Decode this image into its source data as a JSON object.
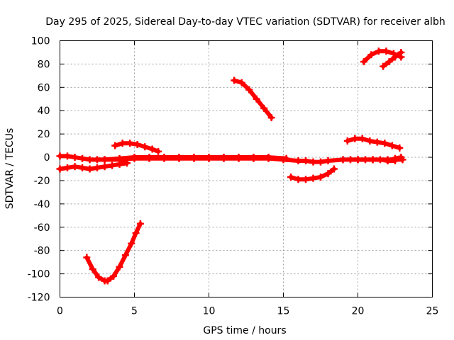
{
  "chart_data": {
    "type": "line",
    "title": "Day 295 of 2025, Sidereal Day-to-day VTEC variation (SDTVAR) for receiver albh",
    "xlabel": "GPS time / hours",
    "ylabel": "SDTVAR / TECUs",
    "xlim": [
      0,
      25
    ],
    "ylim": [
      -120,
      100
    ],
    "xticks": [
      0,
      5,
      10,
      15,
      20,
      25
    ],
    "yticks": [
      -120,
      -100,
      -80,
      -60,
      -40,
      -20,
      0,
      20,
      40,
      60,
      80,
      100
    ],
    "grid": true,
    "marker": "plus",
    "color": "#ff0000",
    "series": [
      {
        "name": "arc-main-near-zero",
        "x": [
          0,
          0.5,
          1,
          1.5,
          2,
          3,
          4,
          5,
          6,
          7,
          8,
          9,
          10,
          11,
          12,
          13,
          14,
          15,
          16,
          16.5,
          17,
          17.5,
          18,
          19,
          20,
          21,
          22,
          23
        ],
        "y": [
          1,
          1,
          0,
          -1,
          -2,
          -2,
          -2,
          -1,
          -1,
          -1,
          -1,
          -1,
          -1,
          -1,
          -1,
          -1,
          -1,
          -2,
          -3,
          -3,
          -4,
          -4,
          -3,
          -2,
          -2,
          -2,
          -2,
          -2
        ]
      },
      {
        "name": "arc-near-zero-b",
        "x": [
          2.5,
          3,
          4,
          5,
          6,
          7,
          8,
          9,
          10,
          11,
          12,
          13,
          14,
          15.2
        ],
        "y": [
          -2,
          -2,
          -1,
          0,
          0,
          0,
          0,
          0,
          0,
          0,
          0,
          0,
          0,
          -1
        ]
      },
      {
        "name": "arc-start-negative",
        "x": [
          0,
          0.5,
          1,
          1.5,
          2,
          2.5,
          3,
          3.5,
          4,
          4.5,
          4.3
        ],
        "y": [
          -10,
          -9,
          -8,
          -9,
          -10,
          -9,
          -8,
          -7,
          -6,
          -5,
          -4
        ]
      },
      {
        "name": "arc-deep-dip",
        "x": [
          1.8,
          2.2,
          2.6,
          3.0,
          3.2,
          3.6,
          4.0,
          4.4,
          4.8,
          5.1,
          5.4
        ],
        "y": [
          -86,
          -96,
          -103,
          -106,
          -106,
          -102,
          -94,
          -84,
          -74,
          -65,
          -57
        ]
      },
      {
        "name": "arc-hump-5h",
        "x": [
          3.7,
          4.2,
          4.7,
          5.2,
          5.7,
          6.2,
          6.6
        ],
        "y": [
          10,
          12,
          12,
          11,
          9,
          7,
          5
        ]
      },
      {
        "name": "arc-descent-12h",
        "x": [
          11.7,
          12.2,
          12.7,
          13.2,
          13.7,
          14.2
        ],
        "y": [
          66,
          64,
          58,
          50,
          42,
          34
        ]
      },
      {
        "name": "arc-neg-16h",
        "x": [
          15.5,
          16,
          16.5,
          17,
          17.5,
          18,
          18.4
        ],
        "y": [
          -17,
          -19,
          -19,
          -18,
          -17,
          -14,
          -10
        ]
      },
      {
        "name": "arc-pos-20h",
        "x": [
          19.3,
          19.8,
          20.3,
          20.8,
          21.3,
          21.8,
          22.3,
          22.8
        ],
        "y": [
          14,
          16,
          16,
          14,
          13,
          12,
          10,
          8
        ]
      },
      {
        "name": "arc-late-zero",
        "x": [
          19.5,
          20,
          20.5,
          21,
          21.5,
          22,
          22.5
        ],
        "y": [
          -2,
          -2,
          -2,
          -2,
          -2,
          -3,
          -3
        ]
      },
      {
        "name": "arc-late-rise",
        "x": [
          22,
          22.5,
          22.9
        ],
        "y": [
          -3,
          -1,
          0
        ]
      },
      {
        "name": "arc-top-right",
        "x": [
          20.4,
          20.9,
          21.4,
          21.9,
          22.4,
          22.9
        ],
        "y": [
          82,
          88,
          91,
          91,
          89,
          86
        ]
      },
      {
        "name": "arc-top-right-b",
        "x": [
          21.7,
          22.1,
          22.5,
          22.9
        ],
        "y": [
          78,
          82,
          86,
          90
        ]
      }
    ]
  }
}
